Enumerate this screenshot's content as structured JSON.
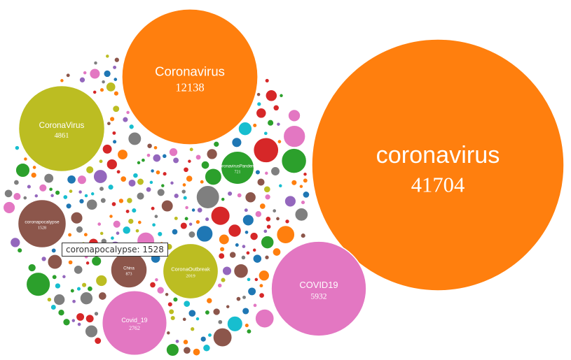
{
  "chart_data": {
    "type": "bubble",
    "title": "",
    "items": [
      {
        "name": "coronavirus",
        "value": 41704,
        "color": "#ff7f0e"
      },
      {
        "name": "Coronavirus",
        "value": 12138,
        "color": "#ff7f0e"
      },
      {
        "name": "COVID19",
        "value": 5932,
        "color": "#e377c2"
      },
      {
        "name": "CoronaVirus",
        "value": 4861,
        "color": "#bcbd22"
      },
      {
        "name": "Covid_19",
        "value": 2762,
        "color": "#e377c2"
      },
      {
        "name": "CoronaOutbreak",
        "value": 2019,
        "color": "#bcbd22"
      },
      {
        "name": "coronapocalypse",
        "value": 1528,
        "color": "#8c564b"
      },
      {
        "name": "China",
        "value": 873,
        "color": "#8c564b"
      },
      {
        "name": "CoronavirusPandemic",
        "value": 721,
        "color": "#2ca02c"
      }
    ],
    "hover_tooltip": "coronapocalypse: 1528"
  }
}
